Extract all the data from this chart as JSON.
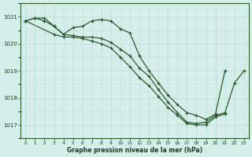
{
  "title": "Graphe pression niveau de la mer (hPa)",
  "background_color": "#d6eeea",
  "grid_color": "#b8ddd8",
  "line_color": "#2d5a2d",
  "ylim": [
    1016.5,
    1021.5
  ],
  "yticks": [
    1017,
    1018,
    1019,
    1020,
    1021
  ],
  "xticks": [
    0,
    1,
    2,
    3,
    4,
    5,
    6,
    7,
    8,
    9,
    10,
    11,
    12,
    13,
    14,
    15,
    16,
    17,
    18,
    19,
    20,
    21,
    22,
    23
  ],
  "line1_x": [
    0,
    1,
    2,
    3,
    4,
    5,
    6,
    7,
    8,
    9,
    10,
    11,
    12,
    13,
    14,
    15,
    16,
    17,
    18,
    19,
    20,
    21
  ],
  "line1_y": [
    1020.85,
    1020.95,
    1020.95,
    1020.65,
    1020.35,
    1020.6,
    1020.65,
    1020.85,
    1020.9,
    1020.85,
    1020.55,
    1020.4,
    1019.55,
    1019.0,
    1018.55,
    1018.1,
    1017.75,
    1017.45,
    1017.35,
    1017.2,
    1017.4,
    1019.0
  ],
  "line2_x": [
    0,
    1,
    2,
    3,
    4,
    5,
    6,
    7,
    8,
    9,
    10,
    11,
    12,
    13,
    14,
    15,
    16,
    17,
    18,
    19,
    20,
    21,
    22,
    23
  ],
  "line2_y": [
    1020.85,
    1020.95,
    1020.85,
    1020.65,
    1020.35,
    1020.3,
    1020.25,
    1020.25,
    1020.2,
    1020.05,
    1019.8,
    1019.55,
    1019.1,
    1018.8,
    1018.3,
    1017.85,
    1017.45,
    1017.1,
    1017.05,
    1017.1,
    1017.35,
    1017.45,
    1018.55,
    1019.0
  ],
  "line3_x": [
    0,
    3,
    4,
    5,
    6,
    7,
    8,
    9,
    10,
    11,
    12,
    13,
    14,
    15,
    16,
    17,
    18,
    19,
    20,
    21
  ],
  "line3_y": [
    1020.85,
    1020.35,
    1020.25,
    1020.25,
    1020.2,
    1020.1,
    1020.0,
    1019.85,
    1019.5,
    1019.15,
    1018.75,
    1018.45,
    1018.05,
    1017.65,
    1017.35,
    1017.05,
    1017.0,
    1017.0,
    1017.3,
    1017.4
  ]
}
